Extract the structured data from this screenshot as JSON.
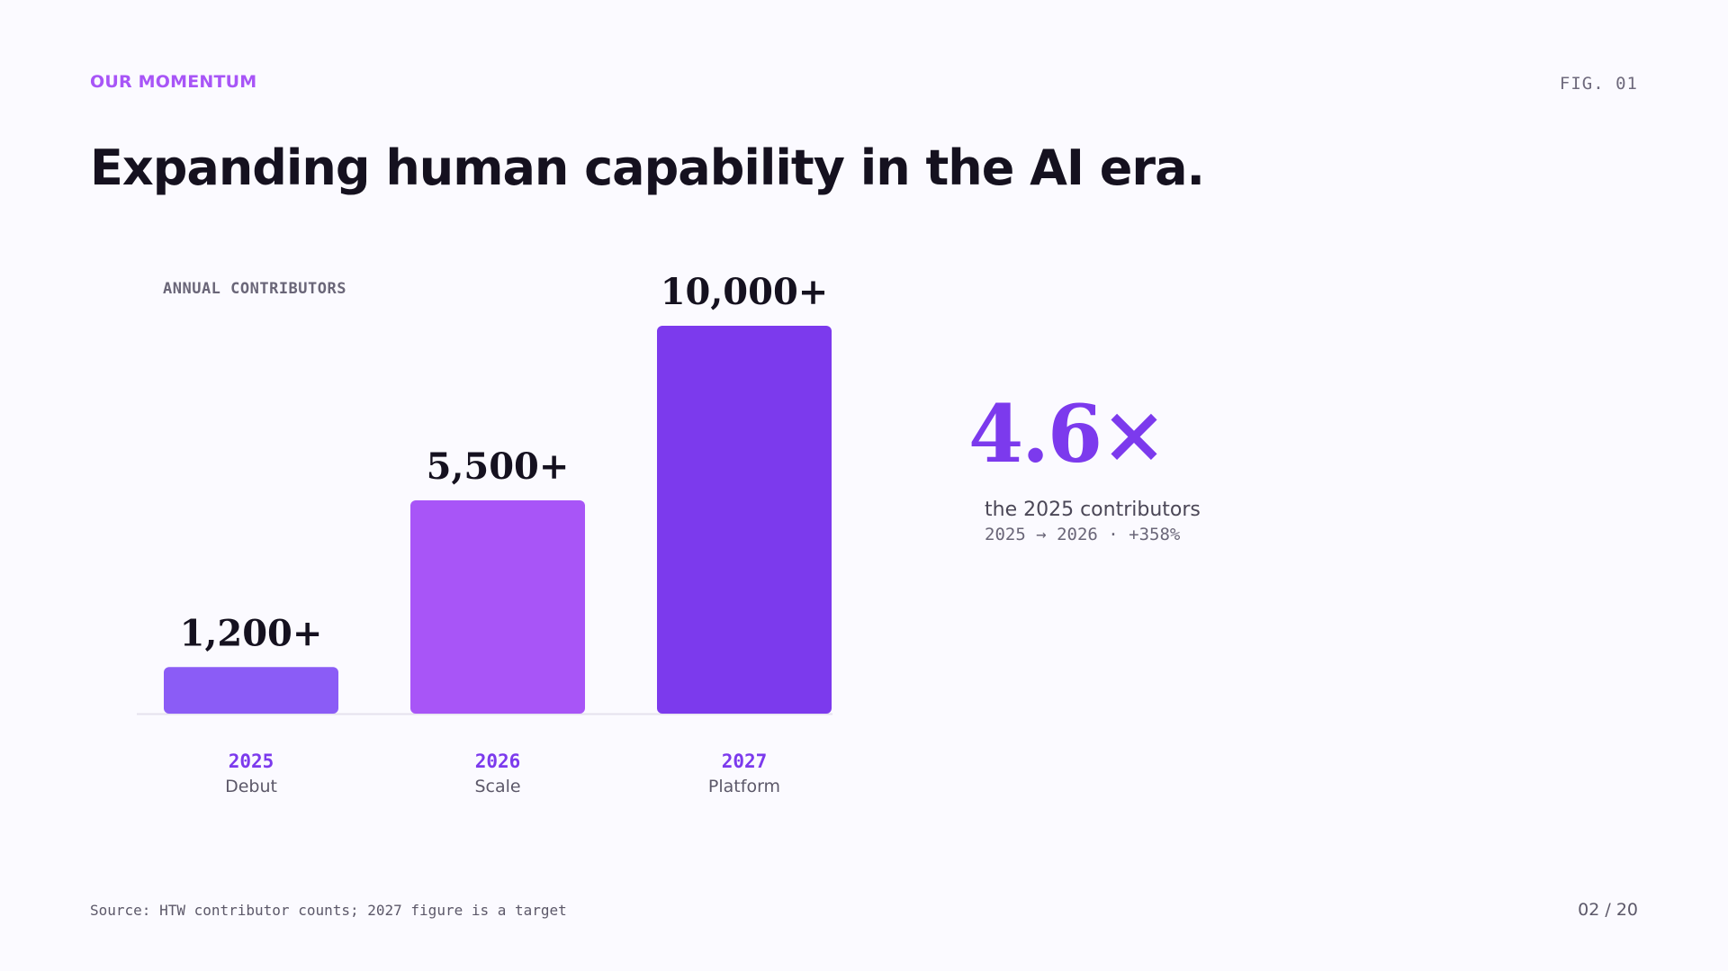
{
  "header": {
    "eyebrow": "OUR MOMENTUM",
    "figure_label": "FIG. 01",
    "title": "Expanding human capability in the AI era."
  },
  "chart_data": {
    "type": "bar",
    "title": "ANNUAL CONTRIBUTORS",
    "categories": [
      "2025",
      "2026",
      "2027"
    ],
    "category_names": [
      "Debut",
      "Scale",
      "Platform"
    ],
    "values": [
      1200,
      5500,
      10000
    ],
    "value_labels": [
      "1,200+",
      "5,500+",
      "10,000+"
    ],
    "colors": [
      "#8b5cf6",
      "#a855f7",
      "#7c3aed"
    ],
    "ylim": [
      0,
      10000
    ],
    "grid": false,
    "xlabel": "",
    "ylabel": ""
  },
  "stat": {
    "value": "4.6×",
    "caption": "the 2025 contributors",
    "detail": "2025 → 2026  ·  +358%",
    "color": "#7c3aed"
  },
  "footer": {
    "source": "Source: HTW contributor counts; 2027 figure is a target",
    "page": "02 / 20"
  }
}
